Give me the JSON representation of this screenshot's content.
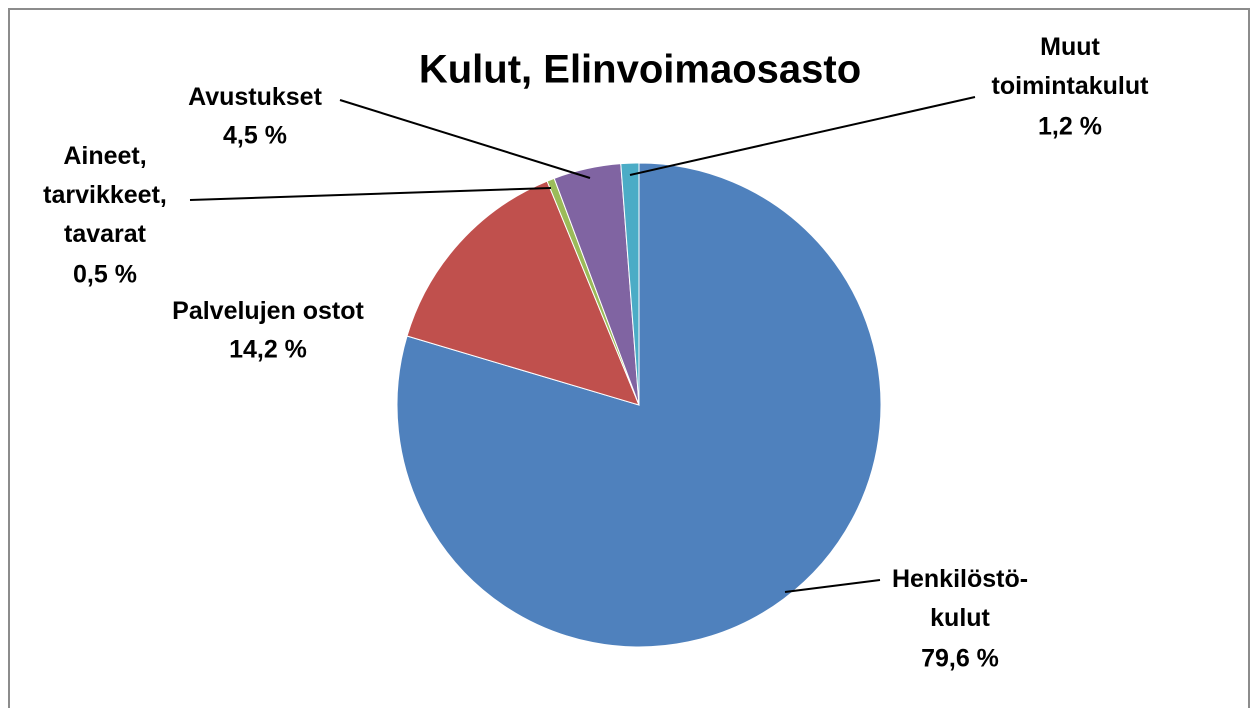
{
  "chart_data": {
    "type": "pie",
    "title": "Kulut, Elinvoimaosasto",
    "categories": [
      "Henkilöstö-\nkulut",
      "Palvelujen ostot",
      "Aineet,\ntarvikkeet,\ntavarat",
      "Avustukset",
      "Muut\ntoimintakulut"
    ],
    "values": [
      79.6,
      14.2,
      0.5,
      4.5,
      1.2
    ],
    "value_labels": [
      "79,6 %",
      "14,2 %",
      "0,5 %",
      "4,5 %",
      "1,2 %"
    ],
    "colors": [
      "#4f81bd",
      "#c0504d",
      "#9bbb59",
      "#8064a2",
      "#4bacc6"
    ]
  }
}
